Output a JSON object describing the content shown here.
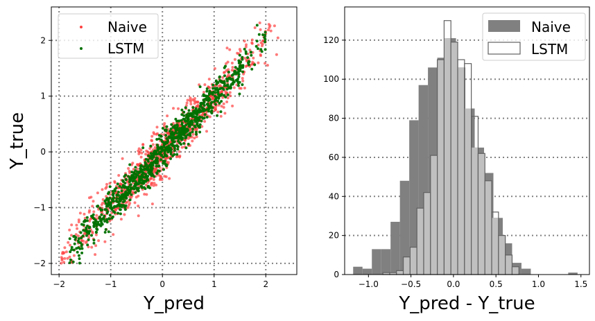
{
  "colors": {
    "naive_scatter": "#ff4040",
    "lstm_scatter": "#007000",
    "naive_hist": "#808080",
    "lstm_hist_edge": "#606060",
    "lstm_hist_fill_overlap": "#c0c0c0",
    "grid": "#808080"
  },
  "chart_data": [
    {
      "type": "scatter",
      "xlabel": "Y_pred",
      "ylabel": "Y_true",
      "xlim": [
        -2.15,
        2.6
      ],
      "ylim": [
        -2.2,
        2.6
      ],
      "xticks": [
        -2,
        -1,
        0,
        1,
        2
      ],
      "xtick_labels": [
        "−2",
        "−1",
        "0",
        "1",
        "2"
      ],
      "yticks": [
        -2,
        -1,
        0,
        1,
        2
      ],
      "ytick_labels": [
        "−2",
        "−1",
        "0",
        "1",
        "2"
      ],
      "grid": true,
      "legend": "top-left",
      "series": [
        {
          "name": "Naive",
          "color": "#ff4040",
          "n_points": 1000,
          "relation": "y ≈ x",
          "x_range": [
            -2.0,
            2.4
          ],
          "spread": 0.22
        },
        {
          "name": "LSTM",
          "color": "#007000",
          "n_points": 1000,
          "relation": "y ≈ x",
          "x_range": [
            -1.8,
            2.0
          ],
          "spread": 0.15
        }
      ]
    },
    {
      "type": "bar",
      "subtype": "histogram",
      "xlabel": "Y_pred - Y_true",
      "ylabel": "",
      "xlim": [
        -1.28,
        1.6
      ],
      "ylim": [
        0,
        137
      ],
      "xticks": [
        -1.0,
        -0.5,
        0.0,
        0.5,
        1.0,
        1.5
      ],
      "xtick_labels": [
        "−1.0",
        "−0.5",
        "0.0",
        "0.5",
        "1.0",
        "1.5"
      ],
      "yticks": [
        0,
        20,
        40,
        60,
        80,
        100,
        120
      ],
      "ytick_labels": [
        "0",
        "20",
        "40",
        "60",
        "80",
        "100",
        "120"
      ],
      "grid": "horizontal",
      "legend": "top-right",
      "series": [
        {
          "name": "Naive",
          "style": "filled",
          "color": "#808080",
          "bin_edges": [
            -1.18,
            -1.07,
            -0.96,
            -0.85,
            -0.74,
            -0.63,
            -0.52,
            -0.41,
            -0.3,
            -0.19,
            -0.08,
            0.03,
            0.14,
            0.25,
            0.36,
            0.47,
            0.58,
            0.69,
            0.8,
            0.91,
            1.02,
            1.13,
            1.24,
            1.35,
            1.46
          ],
          "counts": [
            4,
            3,
            13,
            13,
            27,
            48,
            79,
            97,
            106,
            111,
            121,
            106,
            85,
            65,
            52,
            29,
            16,
            6,
            3,
            0,
            0,
            0,
            0,
            1
          ]
        },
        {
          "name": "LSTM",
          "style": "outline",
          "color": "#606060",
          "bin_edges": [
            -0.83,
            -0.75,
            -0.67,
            -0.59,
            -0.51,
            -0.43,
            -0.35,
            -0.27,
            -0.19,
            -0.11,
            -0.03,
            0.05,
            0.13,
            0.21,
            0.29,
            0.37,
            0.45,
            0.53,
            0.61,
            0.69,
            0.77
          ],
          "counts": [
            1,
            1,
            2,
            9,
            14,
            34,
            42,
            61,
            110,
            130,
            119,
            110,
            108,
            81,
            62,
            48,
            32,
            20,
            10,
            4
          ]
        }
      ]
    }
  ]
}
